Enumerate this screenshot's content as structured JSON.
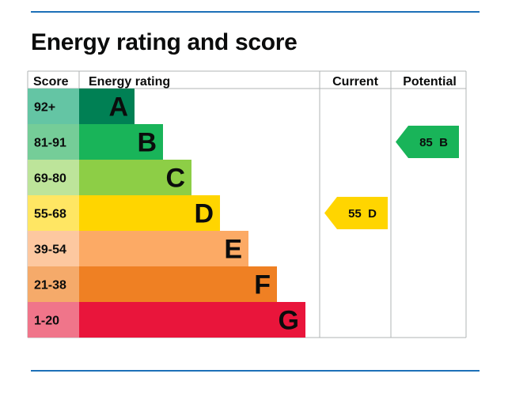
{
  "title": "Energy rating and score",
  "headers": {
    "score": "Score",
    "energy_rating": "Energy rating",
    "current": "Current",
    "potential": "Potential"
  },
  "chart_data": {
    "type": "bar",
    "bands": [
      {
        "letter": "A",
        "range": "92+",
        "score_min": 92,
        "score_max": 100,
        "color": "#008054",
        "range_color": "#64c5a4"
      },
      {
        "letter": "B",
        "range": "81-91",
        "score_min": 81,
        "score_max": 91,
        "color": "#19b459",
        "range_color": "#75cd98"
      },
      {
        "letter": "C",
        "range": "69-80",
        "score_min": 69,
        "score_max": 80,
        "color": "#8dce46",
        "range_color": "#bde49a"
      },
      {
        "letter": "D",
        "range": "55-68",
        "score_min": 55,
        "score_max": 68,
        "color": "#ffd500",
        "range_color": "#ffe663"
      },
      {
        "letter": "E",
        "range": "39-54",
        "score_min": 39,
        "score_max": 54,
        "color": "#fcaa65",
        "range_color": "#fdc8a0"
      },
      {
        "letter": "F",
        "range": "21-38",
        "score_min": 21,
        "score_max": 38,
        "color": "#ef8023",
        "range_color": "#f5aa6a"
      },
      {
        "letter": "G",
        "range": "1-20",
        "score_min": 1,
        "score_max": 20,
        "color": "#e9153b",
        "range_color": "#f0758a"
      }
    ],
    "current": {
      "score": 55,
      "band": "D",
      "label": "55  D",
      "color": "#ffd500"
    },
    "potential": {
      "score": 85,
      "band": "B",
      "label": "85  B",
      "color": "#19b459"
    }
  }
}
